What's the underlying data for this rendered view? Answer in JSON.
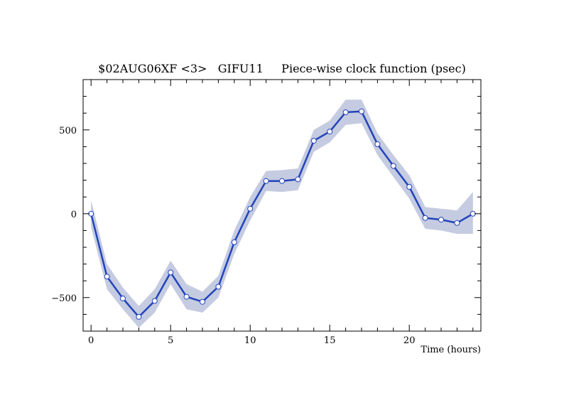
{
  "chart_data": {
    "type": "line",
    "title": "$02AUG06XF <3>   GIFU11     Piece-wise clock function (psec)",
    "xlabel": "Time (hours)",
    "ylabel": "",
    "xlim": [
      -0.5,
      24.5
    ],
    "ylim": [
      -700,
      800
    ],
    "x_ticks": [
      0,
      5,
      10,
      15,
      20
    ],
    "y_ticks": [
      -500,
      0,
      500
    ],
    "grid": false,
    "legend": "none",
    "series": [
      {
        "x": [
          0,
          1,
          2,
          3,
          4,
          5,
          6,
          7,
          8,
          9,
          10,
          11,
          12,
          13,
          14,
          15,
          16,
          17,
          18,
          19,
          20,
          21,
          22,
          23,
          24
        ],
        "y": [
          0,
          -375,
          -505,
          -615,
          -520,
          -350,
          -495,
          -525,
          -435,
          -170,
          30,
          195,
          195,
          205,
          435,
          490,
          605,
          610,
          415,
          285,
          160,
          -25,
          -35,
          -55,
          0
        ],
        "upper": [
          80,
          -300,
          -440,
          -550,
          -450,
          -280,
          -420,
          -465,
          -370,
          -100,
          100,
          255,
          260,
          270,
          500,
          555,
          680,
          680,
          480,
          350,
          230,
          40,
          30,
          20,
          130
        ],
        "lower": [
          -80,
          -450,
          -570,
          -680,
          -590,
          -420,
          -570,
          -590,
          -500,
          -240,
          -40,
          135,
          130,
          140,
          370,
          425,
          530,
          540,
          350,
          220,
          90,
          -90,
          -100,
          -120,
          -120
        ]
      }
    ],
    "colors": {
      "line": "#2244bb",
      "band": "#c5cbe0",
      "marker_fill": "#ffffff",
      "frame": "#000000"
    }
  }
}
